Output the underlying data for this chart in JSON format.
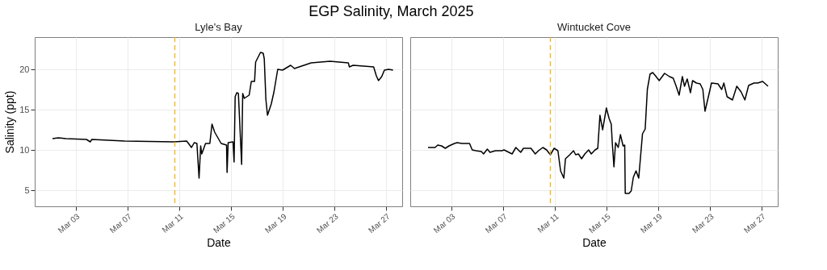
{
  "chart_data": [
    {
      "type": "line",
      "title": "EGP Salinity, March 2025",
      "subtitle": "Lyle's Bay",
      "xlabel": "Date",
      "ylabel": "Salinity (ppt)",
      "xlim": [
        "2025-02-27T20:00",
        "2025-03-28T06:00"
      ],
      "ylim": [
        3,
        24
      ],
      "yticks": [
        5,
        10,
        15,
        20
      ],
      "xticks": [
        {
          "value": "2025-03-03",
          "label": "Mar 03"
        },
        {
          "value": "2025-03-07",
          "label": "Mar 07"
        },
        {
          "value": "2025-03-11",
          "label": "Mar 11"
        },
        {
          "value": "2025-03-15",
          "label": "Mar 15"
        },
        {
          "value": "2025-03-19",
          "label": "Mar 19"
        },
        {
          "value": "2025-03-23",
          "label": "Mar 23"
        },
        {
          "value": "2025-03-27",
          "label": "Mar 27"
        }
      ],
      "grid": true,
      "line_style": "solid",
      "ref_lines": [
        {
          "axis": "x",
          "value": "2025-03-10T16:00",
          "color": "#f0b41c",
          "line_style": "dashed"
        }
      ],
      "x": [
        "2025-03-01T05:00",
        "2025-03-01T16:00",
        "2025-03-02T06:00",
        "2025-03-03T20:00",
        "2025-03-04T03:00",
        "2025-03-04T06:00",
        "2025-03-06T19:00",
        "2025-03-10T14:00",
        "2025-03-11T14:00",
        "2025-03-11T23:00",
        "2025-03-12T04:00",
        "2025-03-12T09:00",
        "2025-03-12T13:00",
        "2025-03-12T16:00",
        "2025-03-12T18:00",
        "2025-03-13T01:00",
        "2025-03-13T09:00",
        "2025-03-13T13:00",
        "2025-03-13T18:00",
        "2025-03-14T06:00",
        "2025-03-14T16:00",
        "2025-03-14T17:00",
        "2025-03-14T19:00",
        "2025-03-15T04:00",
        "2025-03-15T06:00",
        "2025-03-15T08:00",
        "2025-03-15T11:00",
        "2025-03-15T14:00",
        "2025-03-15T20:00",
        "2025-03-15T22:00",
        "2025-03-16T01:00",
        "2025-03-16T10:00",
        "2025-03-16T14:00",
        "2025-03-16T20:00",
        "2025-03-16T22:00",
        "2025-03-17T07:00",
        "2025-03-17T12:00",
        "2025-03-17T14:00",
        "2025-03-17T17:00",
        "2025-03-17T20:00",
        "2025-03-18T03:00",
        "2025-03-18T08:00",
        "2025-03-18T15:00",
        "2025-03-19T00:00",
        "2025-03-19T15:00",
        "2025-03-19T22:00",
        "2025-03-21T05:00",
        "2025-03-22T16:00",
        "2025-03-24T02:00",
        "2025-03-24T04:00",
        "2025-03-24T11:00",
        "2025-03-26T01:00",
        "2025-03-26T06:00",
        "2025-03-26T10:00",
        "2025-03-26T16:00",
        "2025-03-26T21:00",
        "2025-03-27T05:00",
        "2025-03-27T13:00"
      ],
      "series": [
        {
          "color": "#000000",
          "values": [
            11.4,
            11.5,
            11.4,
            11.3,
            11.0,
            11.3,
            11.1,
            11.0,
            11.1,
            10.3,
            10.9,
            10.8,
            6.5,
            10.5,
            9.5,
            10.8,
            10.8,
            13.2,
            12.2,
            10.8,
            10.6,
            7.2,
            10.9,
            11.0,
            8.5,
            16.6,
            17.1,
            17.0,
            8.2,
            17.0,
            16.4,
            16.8,
            18.5,
            18.5,
            20.9,
            22.1,
            22.0,
            21.3,
            16.3,
            14.3,
            15.7,
            17.2,
            20.0,
            19.9,
            20.5,
            20.1,
            20.8,
            21.0,
            20.8,
            20.3,
            20.5,
            20.3,
            19.2,
            18.6,
            19.1,
            19.9,
            20.0,
            19.9
          ]
        }
      ]
    },
    {
      "type": "line",
      "subtitle": "Wintucket Cove",
      "xlabel": "Date",
      "tick_labels": "x",
      "xlim": [
        "2025-02-27T20:00",
        "2025-03-28T06:00"
      ],
      "ylim": [
        3,
        24
      ],
      "yticks": [
        5,
        10,
        15,
        20
      ],
      "xticks": [
        {
          "value": "2025-03-03",
          "label": "Mar 03"
        },
        {
          "value": "2025-03-07",
          "label": "Mar 07"
        },
        {
          "value": "2025-03-11",
          "label": "Mar 11"
        },
        {
          "value": "2025-03-15",
          "label": "Mar 15"
        },
        {
          "value": "2025-03-19",
          "label": "Mar 19"
        },
        {
          "value": "2025-03-23",
          "label": "Mar 23"
        },
        {
          "value": "2025-03-27",
          "label": "Mar 27"
        }
      ],
      "grid": true,
      "line_style": "solid",
      "ref_lines": [
        {
          "axis": "x",
          "value": "2025-03-10T16:00",
          "color": "#f0b41c",
          "line_style": "dashed"
        }
      ],
      "x": [
        "2025-03-01T05:00",
        "2025-03-01T18:00",
        "2025-03-01T23:00",
        "2025-03-02T06:00",
        "2025-03-02T13:00",
        "2025-03-02T20:00",
        "2025-03-03T06:00",
        "2025-03-03T11:00",
        "2025-03-03T20:00",
        "2025-03-04T03:00",
        "2025-03-04T10:00",
        "2025-03-04T15:00",
        "2025-03-04T22:00",
        "2025-03-05T08:00",
        "2025-03-05T12:00",
        "2025-03-05T19:00",
        "2025-03-06T00:00",
        "2025-03-06T10:00",
        "2025-03-06T22:00",
        "2025-03-07T02:00",
        "2025-03-07T17:00",
        "2025-03-08T00:00",
        "2025-03-08T09:00",
        "2025-03-08T14:00",
        "2025-03-08T21:00",
        "2025-03-09T04:00",
        "2025-03-09T12:00",
        "2025-03-09T18:00",
        "2025-03-10T02:00",
        "2025-03-10T09:00",
        "2025-03-10T16:00",
        "2025-03-10T23:00",
        "2025-03-11T06:00",
        "2025-03-11T11:00",
        "2025-03-11T17:00",
        "2025-03-11T20:00",
        "2025-03-12T04:00",
        "2025-03-12T11:00",
        "2025-03-12T15:00",
        "2025-03-12T20:00",
        "2025-03-13T02:00",
        "2025-03-13T08:00",
        "2025-03-13T15:00",
        "2025-03-13T20:00",
        "2025-03-14T03:00",
        "2025-03-14T08:00",
        "2025-03-14T12:00",
        "2025-03-14T17:00",
        "2025-03-15T00:00",
        "2025-03-15T05:00",
        "2025-03-15T09:00",
        "2025-03-15T11:00",
        "2025-03-15T14:00",
        "2025-03-15T17:00",
        "2025-03-15T22:00",
        "2025-03-16T02:00",
        "2025-03-16T07:00",
        "2025-03-16T10:00",
        "2025-03-16T11:00",
        "2025-03-16T18:00",
        "2025-03-16T22:00",
        "2025-03-17T02:00",
        "2025-03-17T07:00",
        "2025-03-17T12:00",
        "2025-03-17T19:00",
        "2025-03-18T00:00",
        "2025-03-18T04:00",
        "2025-03-18T09:00",
        "2025-03-18T14:00",
        "2025-03-18T19:00",
        "2025-03-19T02:00",
        "2025-03-19T12:00",
        "2025-03-19T21:00",
        "2025-03-20T04:00",
        "2025-03-20T09:00",
        "2025-03-20T15:00",
        "2025-03-20T21:00",
        "2025-03-21T01:00",
        "2025-03-21T06:00",
        "2025-03-21T12:00",
        "2025-03-21T16:00",
        "2025-03-21T23:00",
        "2025-03-22T06:00",
        "2025-03-22T11:00",
        "2025-03-22T15:00",
        "2025-03-22T23:00",
        "2025-03-23T03:00",
        "2025-03-23T15:00",
        "2025-03-23T22:00",
        "2025-03-24T02:00",
        "2025-03-24T08:00",
        "2025-03-24T18:00",
        "2025-03-25T02:00",
        "2025-03-25T10:00",
        "2025-03-25T17:00",
        "2025-03-26T00:00",
        "2025-03-26T10:00",
        "2025-03-26T17:00",
        "2025-03-27T02:00",
        "2025-03-27T12:00"
      ],
      "series": [
        {
          "color": "#000000",
          "values": [
            10.3,
            10.3,
            10.6,
            10.5,
            10.2,
            10.5,
            10.8,
            10.9,
            10.8,
            10.8,
            10.8,
            10.0,
            9.9,
            9.8,
            9.5,
            10.1,
            9.7,
            9.9,
            9.9,
            10.0,
            9.5,
            10.3,
            9.7,
            10.2,
            10.2,
            10.2,
            9.5,
            9.9,
            10.3,
            10.0,
            9.4,
            10.2,
            9.9,
            7.4,
            6.5,
            8.9,
            9.4,
            9.9,
            9.4,
            9.5,
            8.9,
            9.5,
            10.0,
            9.5,
            10.0,
            10.2,
            14.3,
            12.5,
            15.2,
            13.9,
            13.2,
            10.8,
            7.9,
            10.9,
            10.3,
            11.9,
            10.5,
            10.6,
            4.6,
            4.6,
            4.9,
            6.6,
            7.4,
            6.5,
            12.0,
            12.6,
            17.5,
            19.4,
            19.6,
            19.2,
            18.6,
            19.5,
            19.1,
            18.9,
            18.0,
            16.8,
            19.1,
            17.9,
            18.8,
            17.1,
            18.6,
            18.3,
            18.2,
            17.5,
            14.8,
            17.1,
            18.3,
            18.2,
            17.5,
            18.3,
            16.6,
            16.2,
            17.9,
            17.2,
            16.2,
            18.0,
            18.3,
            18.3,
            18.5,
            17.9
          ]
        }
      ]
    }
  ]
}
